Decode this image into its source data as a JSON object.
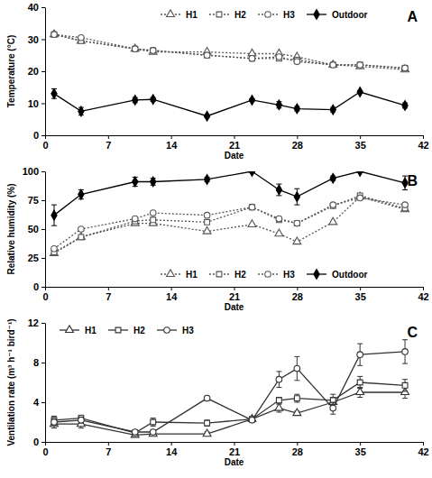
{
  "chart_data": [
    {
      "type": "line",
      "title": "A",
      "x_label": "Date",
      "y_label": "Temperature (°C)",
      "x": [
        1,
        4,
        10,
        12,
        18,
        23,
        26,
        28,
        32,
        35,
        40
      ],
      "xlim": [
        0,
        42
      ],
      "xticks": [
        0,
        7,
        14,
        21,
        28,
        35,
        42
      ],
      "ylim": [
        0,
        40
      ],
      "yticks": [
        0,
        10,
        20,
        30,
        40
      ],
      "grid": false,
      "legend": "top-right",
      "series": [
        {
          "name": "H1",
          "color": "#555555",
          "marker": "open-triangle",
          "line_style": "dotted",
          "values": [
            31.5,
            29.5,
            27,
            26,
            26,
            25.5,
            25.5,
            24.5,
            22,
            21.5,
            20.5
          ]
        },
        {
          "name": "H2",
          "color": "#555555",
          "marker": "open-square",
          "line_style": "dotted",
          "values": [
            31.5,
            29.5,
            27,
            26.5,
            25,
            24,
            24,
            23.5,
            22,
            22,
            21
          ]
        },
        {
          "name": "H3",
          "color": "#555555",
          "marker": "open-circle",
          "line_style": "dotted",
          "values": [
            31.5,
            30.5,
            27,
            26.5,
            25,
            24,
            24.5,
            23,
            22,
            22,
            21
          ]
        },
        {
          "name": "Outdoor",
          "color": "#000000",
          "marker": "filled-diamond",
          "line_style": "solid",
          "values": [
            13,
            7.5,
            11,
            11.2,
            6,
            11,
            9.5,
            8.3,
            8,
            13.5,
            9.3
          ],
          "errors": [
            1.5,
            1.2,
            0.8,
            0.6,
            0.4,
            0.4,
            1.0,
            0.7,
            0.7,
            0.4,
            0.8
          ]
        }
      ]
    },
    {
      "type": "line",
      "title": "B",
      "x_label": "Date",
      "y_label": "Relative humidity (%)",
      "x": [
        1,
        4,
        10,
        12,
        18,
        23,
        26,
        28,
        32,
        35,
        40
      ],
      "xlim": [
        0,
        42
      ],
      "xticks": [
        0,
        7,
        14,
        21,
        28,
        35,
        42
      ],
      "ylim": [
        0,
        100
      ],
      "yticks": [
        0,
        25,
        50,
        75,
        100
      ],
      "grid": false,
      "legend": "bottom-right",
      "series": [
        {
          "name": "H1",
          "color": "#555555",
          "marker": "open-triangle",
          "line_style": "dotted",
          "values": [
            29,
            43,
            55,
            55,
            48,
            54,
            46,
            39,
            56,
            78,
            67
          ]
        },
        {
          "name": "H2",
          "color": "#555555",
          "marker": "open-square",
          "line_style": "dotted",
          "values": [
            30,
            43,
            57,
            58,
            56,
            69,
            58,
            55,
            70,
            79,
            68
          ]
        },
        {
          "name": "H3",
          "color": "#555555",
          "marker": "open-circle",
          "line_style": "dotted",
          "values": [
            33,
            50,
            59,
            64,
            62,
            69,
            59,
            55,
            71,
            77,
            71
          ]
        },
        {
          "name": "Outdoor",
          "color": "#000000",
          "marker": "filled-diamond",
          "line_style": "solid",
          "values": [
            62,
            80,
            91,
            91,
            93,
            100,
            84,
            78,
            94,
            100,
            90
          ],
          "errors": [
            9,
            4,
            4,
            3,
            2,
            1,
            5,
            7,
            2,
            1,
            6
          ]
        }
      ]
    },
    {
      "type": "line",
      "title": "C",
      "x_label": "Date",
      "y_label": "Ventilation rate (m³ h⁻¹ bird⁻¹)",
      "x": [
        1,
        4,
        10,
        12,
        18,
        23,
        26,
        28,
        32,
        35,
        40
      ],
      "xlim": [
        0,
        42
      ],
      "xticks": [
        0,
        7,
        14,
        21,
        28,
        35,
        42
      ],
      "ylim": [
        0,
        12
      ],
      "yticks": [
        0,
        4,
        8,
        12
      ],
      "grid": false,
      "legend": "top-left",
      "series": [
        {
          "name": "H1",
          "color": "#333333",
          "marker": "open-triangle",
          "line_style": "solid",
          "values": [
            1.8,
            1.8,
            0.7,
            0.8,
            0.8,
            2.3,
            3.4,
            2.9,
            4.0,
            5.0,
            5.0
          ],
          "errors": [
            0.4,
            0.4,
            0.2,
            0.2,
            0.2,
            0.2,
            0.4,
            0.2,
            0.5,
            0.5,
            0.6
          ]
        },
        {
          "name": "H2",
          "color": "#333333",
          "marker": "open-square",
          "line_style": "solid",
          "values": [
            2.2,
            2.4,
            0.9,
            2.0,
            1.9,
            2.3,
            4.2,
            4.4,
            4.2,
            6.0,
            5.7
          ],
          "errors": [
            0.4,
            0.3,
            0.2,
            0.4,
            0.3,
            0.2,
            0.3,
            0.4,
            0.6,
            0.6,
            0.6
          ]
        },
        {
          "name": "H3",
          "color": "#333333",
          "marker": "open-circle",
          "line_style": "solid",
          "values": [
            2.0,
            2.2,
            1.0,
            1.0,
            4.4,
            2.2,
            6.3,
            7.4,
            3.4,
            8.8,
            9.1
          ],
          "errors": [
            0.3,
            0.3,
            0.2,
            0.2,
            0.2,
            0.2,
            0.8,
            1.2,
            0.6,
            1.1,
            1.2
          ]
        }
      ]
    }
  ]
}
